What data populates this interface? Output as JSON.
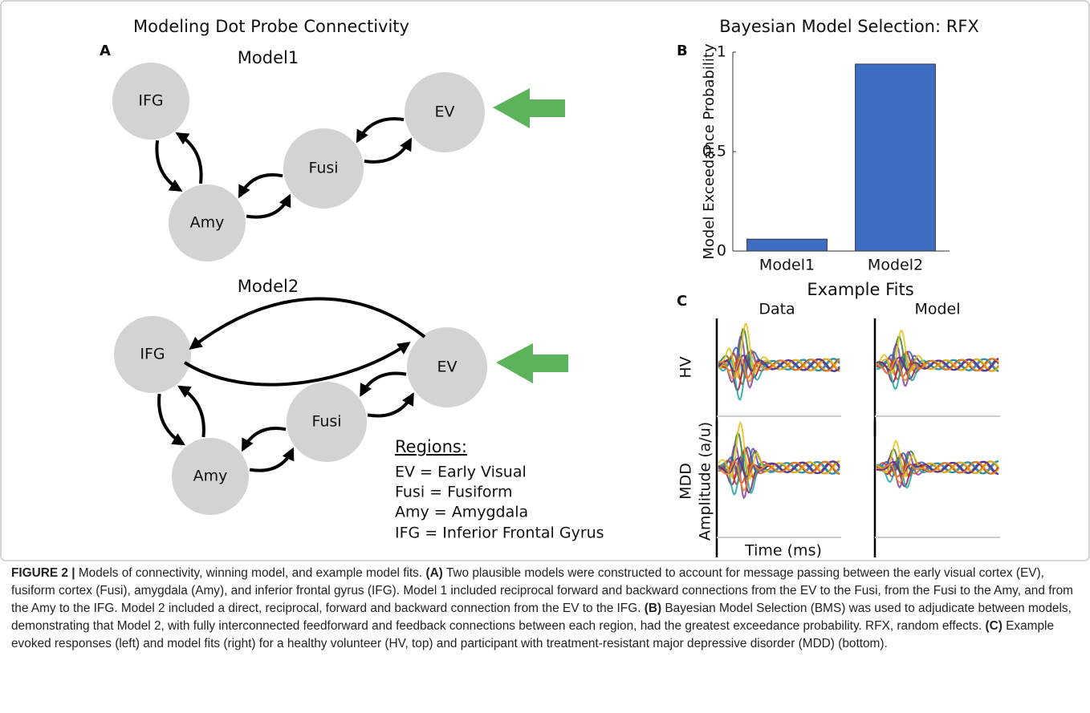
{
  "panel_a": {
    "label": "A",
    "title": "Modeling Dot Probe Connectivity",
    "models": [
      {
        "title": "Model1",
        "nodes": [
          "IFG",
          "Amy",
          "Fusi",
          "EV"
        ]
      },
      {
        "title": "Model2",
        "nodes": [
          "IFG",
          "Amy",
          "Fusi",
          "EV"
        ]
      }
    ],
    "regions": {
      "heading": "Regions:",
      "items": [
        "EV = Early Visual",
        "Fusi = Fusiform",
        "Amy = Amygdala",
        "IFG = Inferior Frontal Gyrus"
      ]
    }
  },
  "chart_data": {
    "type": "bar",
    "label": "B",
    "title": "Bayesian Model Selection: RFX",
    "y_label": "Model Exceedance Probability",
    "categories": [
      "Model1",
      "Model2"
    ],
    "values": [
      0.06,
      0.94
    ],
    "color": "#3d6cc0",
    "ylim": [
      0,
      1
    ],
    "yticks": [
      0,
      0.5,
      1
    ]
  },
  "panel_c": {
    "label": "C",
    "title": "Example Fits",
    "columns": [
      "Data",
      "Model"
    ],
    "rows": [
      "HV",
      "MDD"
    ],
    "y_label": "Amplitude (a/u)",
    "x_label": "Time (ms)"
  },
  "caption": {
    "label": "FIGURE 2 |",
    "intro": "Models of connectivity, winning model, and example model fits.",
    "sections": [
      {
        "marker": "(A)",
        "text": "Two plausible models were constructed to account for message passing between the early visual cortex (EV), fusiform cortex (Fusi), amygdala (Amy), and inferior frontal gyrus (IFG). Model 1 included reciprocal forward and backward connections from the EV to the Fusi, from the Fusi to the Amy, and from the Amy to the IFG. Model 2 included a direct, reciprocal, forward and backward connection from the EV to the IFG."
      },
      {
        "marker": "(B)",
        "text": "Bayesian Model Selection (BMS) was used to adjudicate between models, demonstrating that Model 2, with fully interconnected feedforward and feedback connections between each region, had the greatest exceedance probability. RFX, random effects."
      },
      {
        "marker": "(C)",
        "text": "Example evoked responses (left) and model fits (right) for a healthy volunteer (HV, top) and participant with treatment-resistant major depressive disorder (MDD) (bottom)."
      }
    ]
  }
}
